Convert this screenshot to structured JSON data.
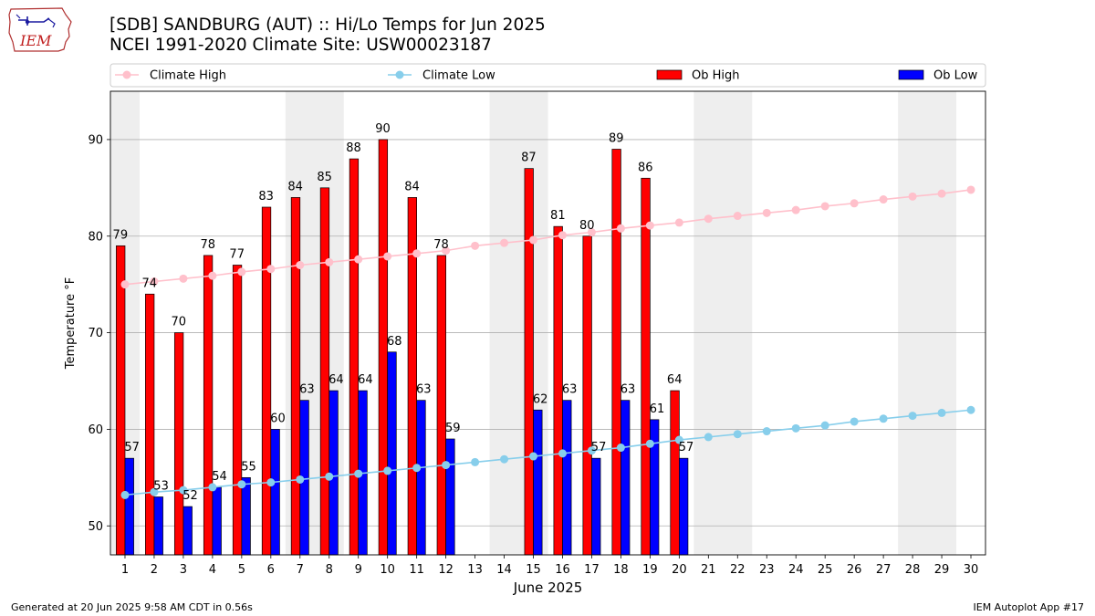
{
  "logo": {
    "text": "IEM"
  },
  "header": {
    "title_line1": "[SDB] SANDBURG (AUT) :: Hi/Lo Temps for Jun 2025",
    "title_line2": "NCEI 1991-2020 Climate Site: USW00023187"
  },
  "footer": {
    "left": "Generated at 20 Jun 2025 9:58 AM CDT in 0.56s",
    "right": "IEM Autoplot App #17"
  },
  "chart_data": {
    "type": "bar",
    "title": "[SDB] SANDBURG (AUT) :: Hi/Lo Temps for Jun 2025",
    "xlabel": "June 2025",
    "ylabel": "Temperature °F",
    "ylim": [
      47,
      95
    ],
    "yticks": [
      50,
      60,
      70,
      80,
      90
    ],
    "grid": true,
    "legend_position": "top",
    "categories": [
      "1",
      "2",
      "3",
      "4",
      "5",
      "6",
      "7",
      "8",
      "9",
      "10",
      "11",
      "12",
      "13",
      "14",
      "15",
      "16",
      "17",
      "18",
      "19",
      "20",
      "21",
      "22",
      "23",
      "24",
      "25",
      "26",
      "27",
      "28",
      "29",
      "30"
    ],
    "weekend_shading_days": [
      [
        1,
        1
      ],
      [
        7,
        8
      ],
      [
        14,
        15
      ],
      [
        21,
        22
      ],
      [
        28,
        29
      ]
    ],
    "series": [
      {
        "name": "Climate High",
        "kind": "line",
        "color": "#ffc0cb",
        "values": [
          75.0,
          75.3,
          75.6,
          75.9,
          76.3,
          76.6,
          77.0,
          77.3,
          77.6,
          77.9,
          78.2,
          78.5,
          79.0,
          79.3,
          79.6,
          80.1,
          80.4,
          80.8,
          81.1,
          81.4,
          81.8,
          82.1,
          82.4,
          82.7,
          83.1,
          83.4,
          83.8,
          84.1,
          84.4,
          84.8
        ]
      },
      {
        "name": "Climate Low",
        "kind": "line",
        "color": "#87ceeb",
        "values": [
          53.2,
          53.5,
          53.7,
          54.0,
          54.3,
          54.5,
          54.8,
          55.1,
          55.4,
          55.7,
          56.0,
          56.3,
          56.6,
          56.9,
          57.2,
          57.5,
          57.8,
          58.1,
          58.5,
          58.9,
          59.2,
          59.5,
          59.8,
          60.1,
          60.4,
          60.8,
          61.1,
          61.4,
          61.7,
          62.0
        ]
      },
      {
        "name": "Ob High",
        "kind": "bar",
        "color": "#ff0000",
        "values": [
          79,
          74,
          70,
          78,
          77,
          83,
          84,
          85,
          88,
          90,
          84,
          78,
          null,
          null,
          87,
          81,
          80,
          89,
          86,
          64,
          null,
          null,
          null,
          null,
          null,
          null,
          null,
          null,
          null,
          null
        ]
      },
      {
        "name": "Ob Low",
        "kind": "bar",
        "color": "#0000ff",
        "values": [
          57,
          53,
          52,
          54,
          55,
          60,
          63,
          64,
          64,
          68,
          63,
          59,
          null,
          null,
          62,
          63,
          57,
          63,
          61,
          57,
          null,
          null,
          null,
          null,
          null,
          null,
          null,
          null,
          null,
          null
        ]
      }
    ]
  }
}
